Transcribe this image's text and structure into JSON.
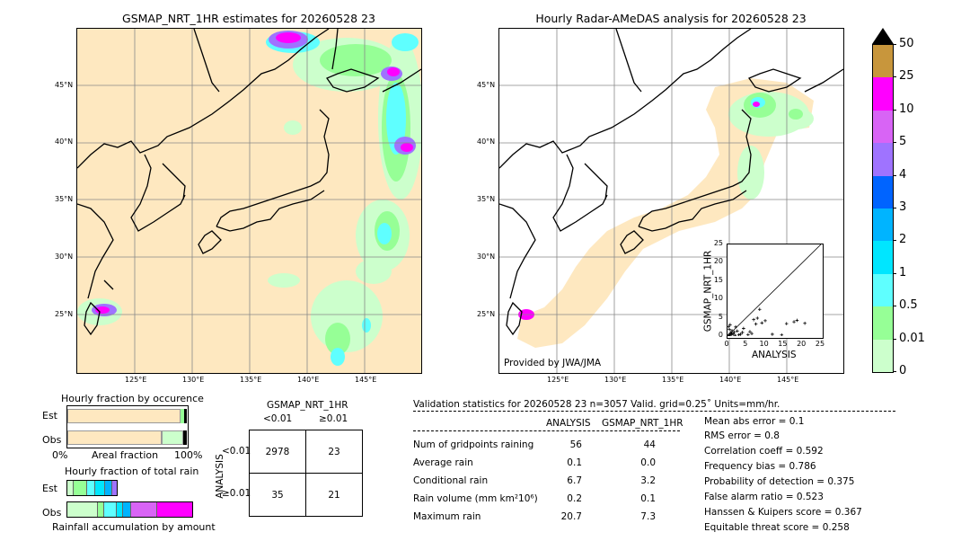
{
  "left_map": {
    "title": "GSMAP_NRT_1HR estimates for 20260528 23",
    "lat_labels": [
      "45°N",
      "40°N",
      "35°N",
      "30°N",
      "25°N"
    ],
    "lon_labels": [
      "125°E",
      "130°E",
      "135°E",
      "140°E",
      "145°E"
    ]
  },
  "right_map": {
    "title": "Hourly Radar-AMeDAS analysis for 20260528 23",
    "lat_labels": [
      "45°N",
      "40°N",
      "35°N",
      "30°N",
      "25°N"
    ],
    "lon_labels": [
      "125°E",
      "130°E",
      "135°E",
      "140°E",
      "145°E"
    ],
    "credit": "Provided by JWA/JMA"
  },
  "colorbar": {
    "ticks": [
      "50",
      "25",
      "10",
      "5",
      "4",
      "3",
      "2",
      "1",
      "0.5",
      "0.01",
      "0"
    ],
    "colors": [
      "#c8963c",
      "#ff00ff",
      "#d864f5",
      "#9f73ff",
      "#0064ff",
      "#00b4ff",
      "#00e6ff",
      "#5fffff",
      "#96ff96",
      "#ccffcc",
      "#fee8c0"
    ]
  },
  "fraction_occurrence": {
    "title": "Hourly fraction by occurence",
    "est_label": "Est",
    "obs_label": "Obs",
    "axis_left": "0%",
    "axis_mid": "Areal fraction",
    "axis_right": "100%"
  },
  "fraction_total": {
    "title": "Hourly fraction of total rain",
    "est_label": "Est",
    "obs_label": "Obs",
    "axis_label": "Rainfall accumulation by amount"
  },
  "contingency": {
    "col_header": "GSMAP_NRT_1HR",
    "col_lt": "<0.01",
    "col_ge": "≥0.01",
    "row_header": "ANALYSIS",
    "row_lt": "<0.01",
    "row_ge": "≥0.01",
    "cells": [
      "2978",
      "23",
      "35",
      "21"
    ]
  },
  "validation": {
    "header": "Validation statistics for 20260528 23  n=3057 Valid. grid=0.25˚ Units=mm/hr.",
    "col_analysis": "ANALYSIS",
    "col_gsmap": "GSMAP_NRT_1HR",
    "rows": [
      {
        "label": "Num of gridpoints raining",
        "analysis": "56",
        "gsmap": "44"
      },
      {
        "label": "Average rain",
        "analysis": "0.1",
        "gsmap": "0.0"
      },
      {
        "label": "Conditional rain",
        "analysis": "6.7",
        "gsmap": "3.2"
      },
      {
        "label": "Rain volume (mm km²10⁶)",
        "analysis": "0.2",
        "gsmap": "0.1"
      },
      {
        "label": "Maximum rain",
        "analysis": "20.7",
        "gsmap": "7.3"
      }
    ],
    "scores": [
      "Mean abs error =    0.1",
      "RMS error =    0.8",
      "Correlation coeff =  0.592",
      "Frequency bias =  0.786",
      "Probability of detection =  0.375",
      "False alarm ratio =  0.523",
      "Hanssen & Kuipers score =  0.367",
      "Equitable threat score =  0.258"
    ]
  },
  "chart_data": {
    "type": "scatter",
    "title": "",
    "xlabel": "ANALYSIS",
    "ylabel": "GSMAP_NRT_1HR",
    "xlim": [
      0,
      25
    ],
    "ylim": [
      0,
      25
    ],
    "ticks": [
      "0",
      "5",
      "10",
      "15",
      "20",
      "25"
    ],
    "points": [
      [
        0.2,
        0.1
      ],
      [
        0.4,
        0.3
      ],
      [
        0.6,
        0.2
      ],
      [
        0.8,
        0.9
      ],
      [
        1.0,
        0.4
      ],
      [
        1.2,
        1.5
      ],
      [
        1.5,
        0.6
      ],
      [
        1.8,
        1.1
      ],
      [
        2.0,
        0.2
      ],
      [
        2.2,
        2.5
      ],
      [
        0.5,
        1.8
      ],
      [
        0.3,
        2.6
      ],
      [
        0.7,
        3.1
      ],
      [
        1.1,
        0.8
      ],
      [
        2.6,
        1.4
      ],
      [
        3.0,
        0.3
      ],
      [
        3.5,
        0.5
      ],
      [
        4.0,
        1.0
      ],
      [
        4.3,
        2.1
      ],
      [
        5.5,
        0.4
      ],
      [
        6.0,
        1.2
      ],
      [
        6.5,
        0.7
      ],
      [
        7.0,
        4.5
      ],
      [
        7.6,
        3.3
      ],
      [
        8.0,
        4.9
      ],
      [
        8.6,
        7.3
      ],
      [
        9.2,
        3.6
      ],
      [
        10.1,
        4.2
      ],
      [
        15.8,
        3.4
      ],
      [
        17.8,
        3.9
      ],
      [
        18.6,
        4.3
      ],
      [
        20.7,
        3.5
      ],
      [
        14.5,
        0.3
      ],
      [
        12.0,
        0.5
      ]
    ]
  }
}
